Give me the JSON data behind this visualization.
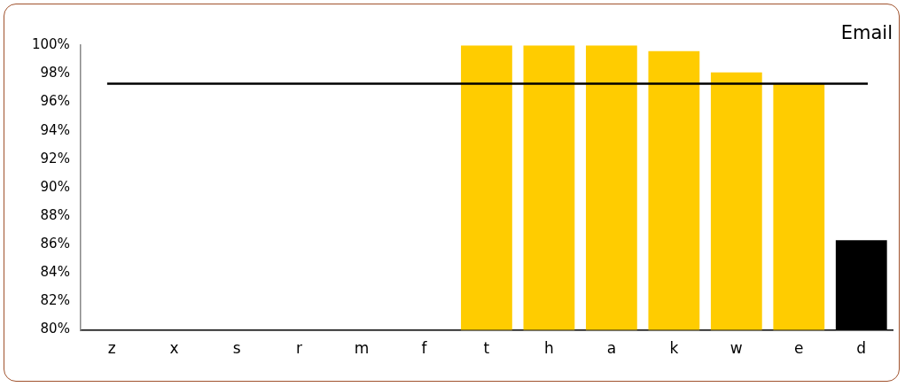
{
  "chart_data": {
    "type": "bar",
    "title": "Email",
    "categories": [
      "z",
      "x",
      "s",
      "r",
      "m",
      "f",
      "t",
      "h",
      "a",
      "k",
      "w",
      "e",
      "d"
    ],
    "values": [
      null,
      null,
      null,
      null,
      null,
      null,
      100,
      100,
      100,
      99.6,
      98.1,
      97.3,
      86.3
    ],
    "colors": [
      "#ffcc00",
      "#ffcc00",
      "#ffcc00",
      "#ffcc00",
      "#ffcc00",
      "#ffcc00",
      "#ffcc00",
      "#ffcc00",
      "#ffcc00",
      "#ffcc00",
      "#ffcc00",
      "#ffcc00",
      "#000000"
    ],
    "ylim": [
      80,
      100
    ],
    "yticks": [
      {
        "value": 80,
        "label": "80%"
      },
      {
        "value": 82,
        "label": "82%"
      },
      {
        "value": 84,
        "label": "84%"
      },
      {
        "value": 86,
        "label": "86%"
      },
      {
        "value": 88,
        "label": "88%"
      },
      {
        "value": 90,
        "label": "90%"
      },
      {
        "value": 92,
        "label": "92%"
      },
      {
        "value": 94,
        "label": "94%"
      },
      {
        "value": 96,
        "label": "96%"
      },
      {
        "value": 98,
        "label": "98%"
      },
      {
        "value": 100,
        "label": "100%"
      }
    ],
    "ref_lines": [
      {
        "axis": "y",
        "value": 97.3,
        "color": "#000000"
      }
    ],
    "grid": false,
    "legend": false
  }
}
